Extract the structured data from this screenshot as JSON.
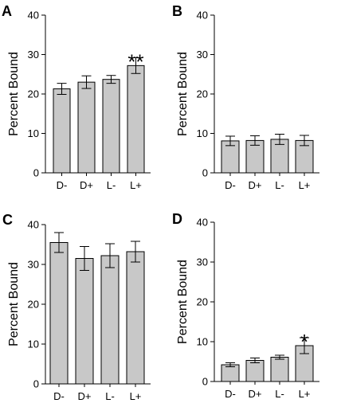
{
  "chart_data": [
    {
      "type": "bar",
      "panel": "A",
      "ylabel": "Percent Bound",
      "categories": [
        "D-",
        "D+",
        "L-",
        "L+"
      ],
      "values": [
        21.3,
        23.0,
        23.7,
        27.2
      ],
      "errors": [
        1.4,
        1.6,
        1.0,
        2.0
      ],
      "ylim": [
        0,
        40
      ],
      "yticks": [
        "0",
        "10",
        "20",
        "30",
        "40"
      ],
      "annotations": [
        {
          "category": "L+",
          "text": "**"
        }
      ],
      "bar_color": "#c8c8c8",
      "grid": false
    },
    {
      "type": "bar",
      "panel": "B",
      "ylabel": "Percent Bound",
      "categories": [
        "D-",
        "D+",
        "L-",
        "L+"
      ],
      "values": [
        8.1,
        8.2,
        8.5,
        8.2
      ],
      "errors": [
        1.2,
        1.2,
        1.3,
        1.3
      ],
      "ylim": [
        0,
        40
      ],
      "yticks": [
        "0",
        "10",
        "20",
        "30",
        "40"
      ],
      "annotations": [],
      "bar_color": "#c8c8c8",
      "grid": false
    },
    {
      "type": "bar",
      "panel": "C",
      "ylabel": "Percent Bound",
      "categories": [
        "D-",
        "D+",
        "L-",
        "L+"
      ],
      "values": [
        35.5,
        31.5,
        32.2,
        33.2
      ],
      "errors": [
        2.5,
        3.0,
        3.0,
        2.6
      ],
      "ylim": [
        0,
        40
      ],
      "yticks": [
        "0",
        "10",
        "20",
        "30",
        "40"
      ],
      "annotations": [],
      "bar_color": "#c8c8c8",
      "grid": false
    },
    {
      "type": "bar",
      "panel": "D",
      "ylabel": "Percent Bound",
      "categories": [
        "D-",
        "D+",
        "L-",
        "L+"
      ],
      "values": [
        4.2,
        5.3,
        6.1,
        9.0
      ],
      "errors": [
        0.5,
        0.6,
        0.5,
        2.0
      ],
      "ylim": [
        0,
        40
      ],
      "yticks": [
        "0",
        "10",
        "20",
        "30",
        "40"
      ],
      "annotations": [
        {
          "category": "L+",
          "text": "*"
        }
      ],
      "bar_color": "#c8c8c8",
      "grid": false
    }
  ]
}
